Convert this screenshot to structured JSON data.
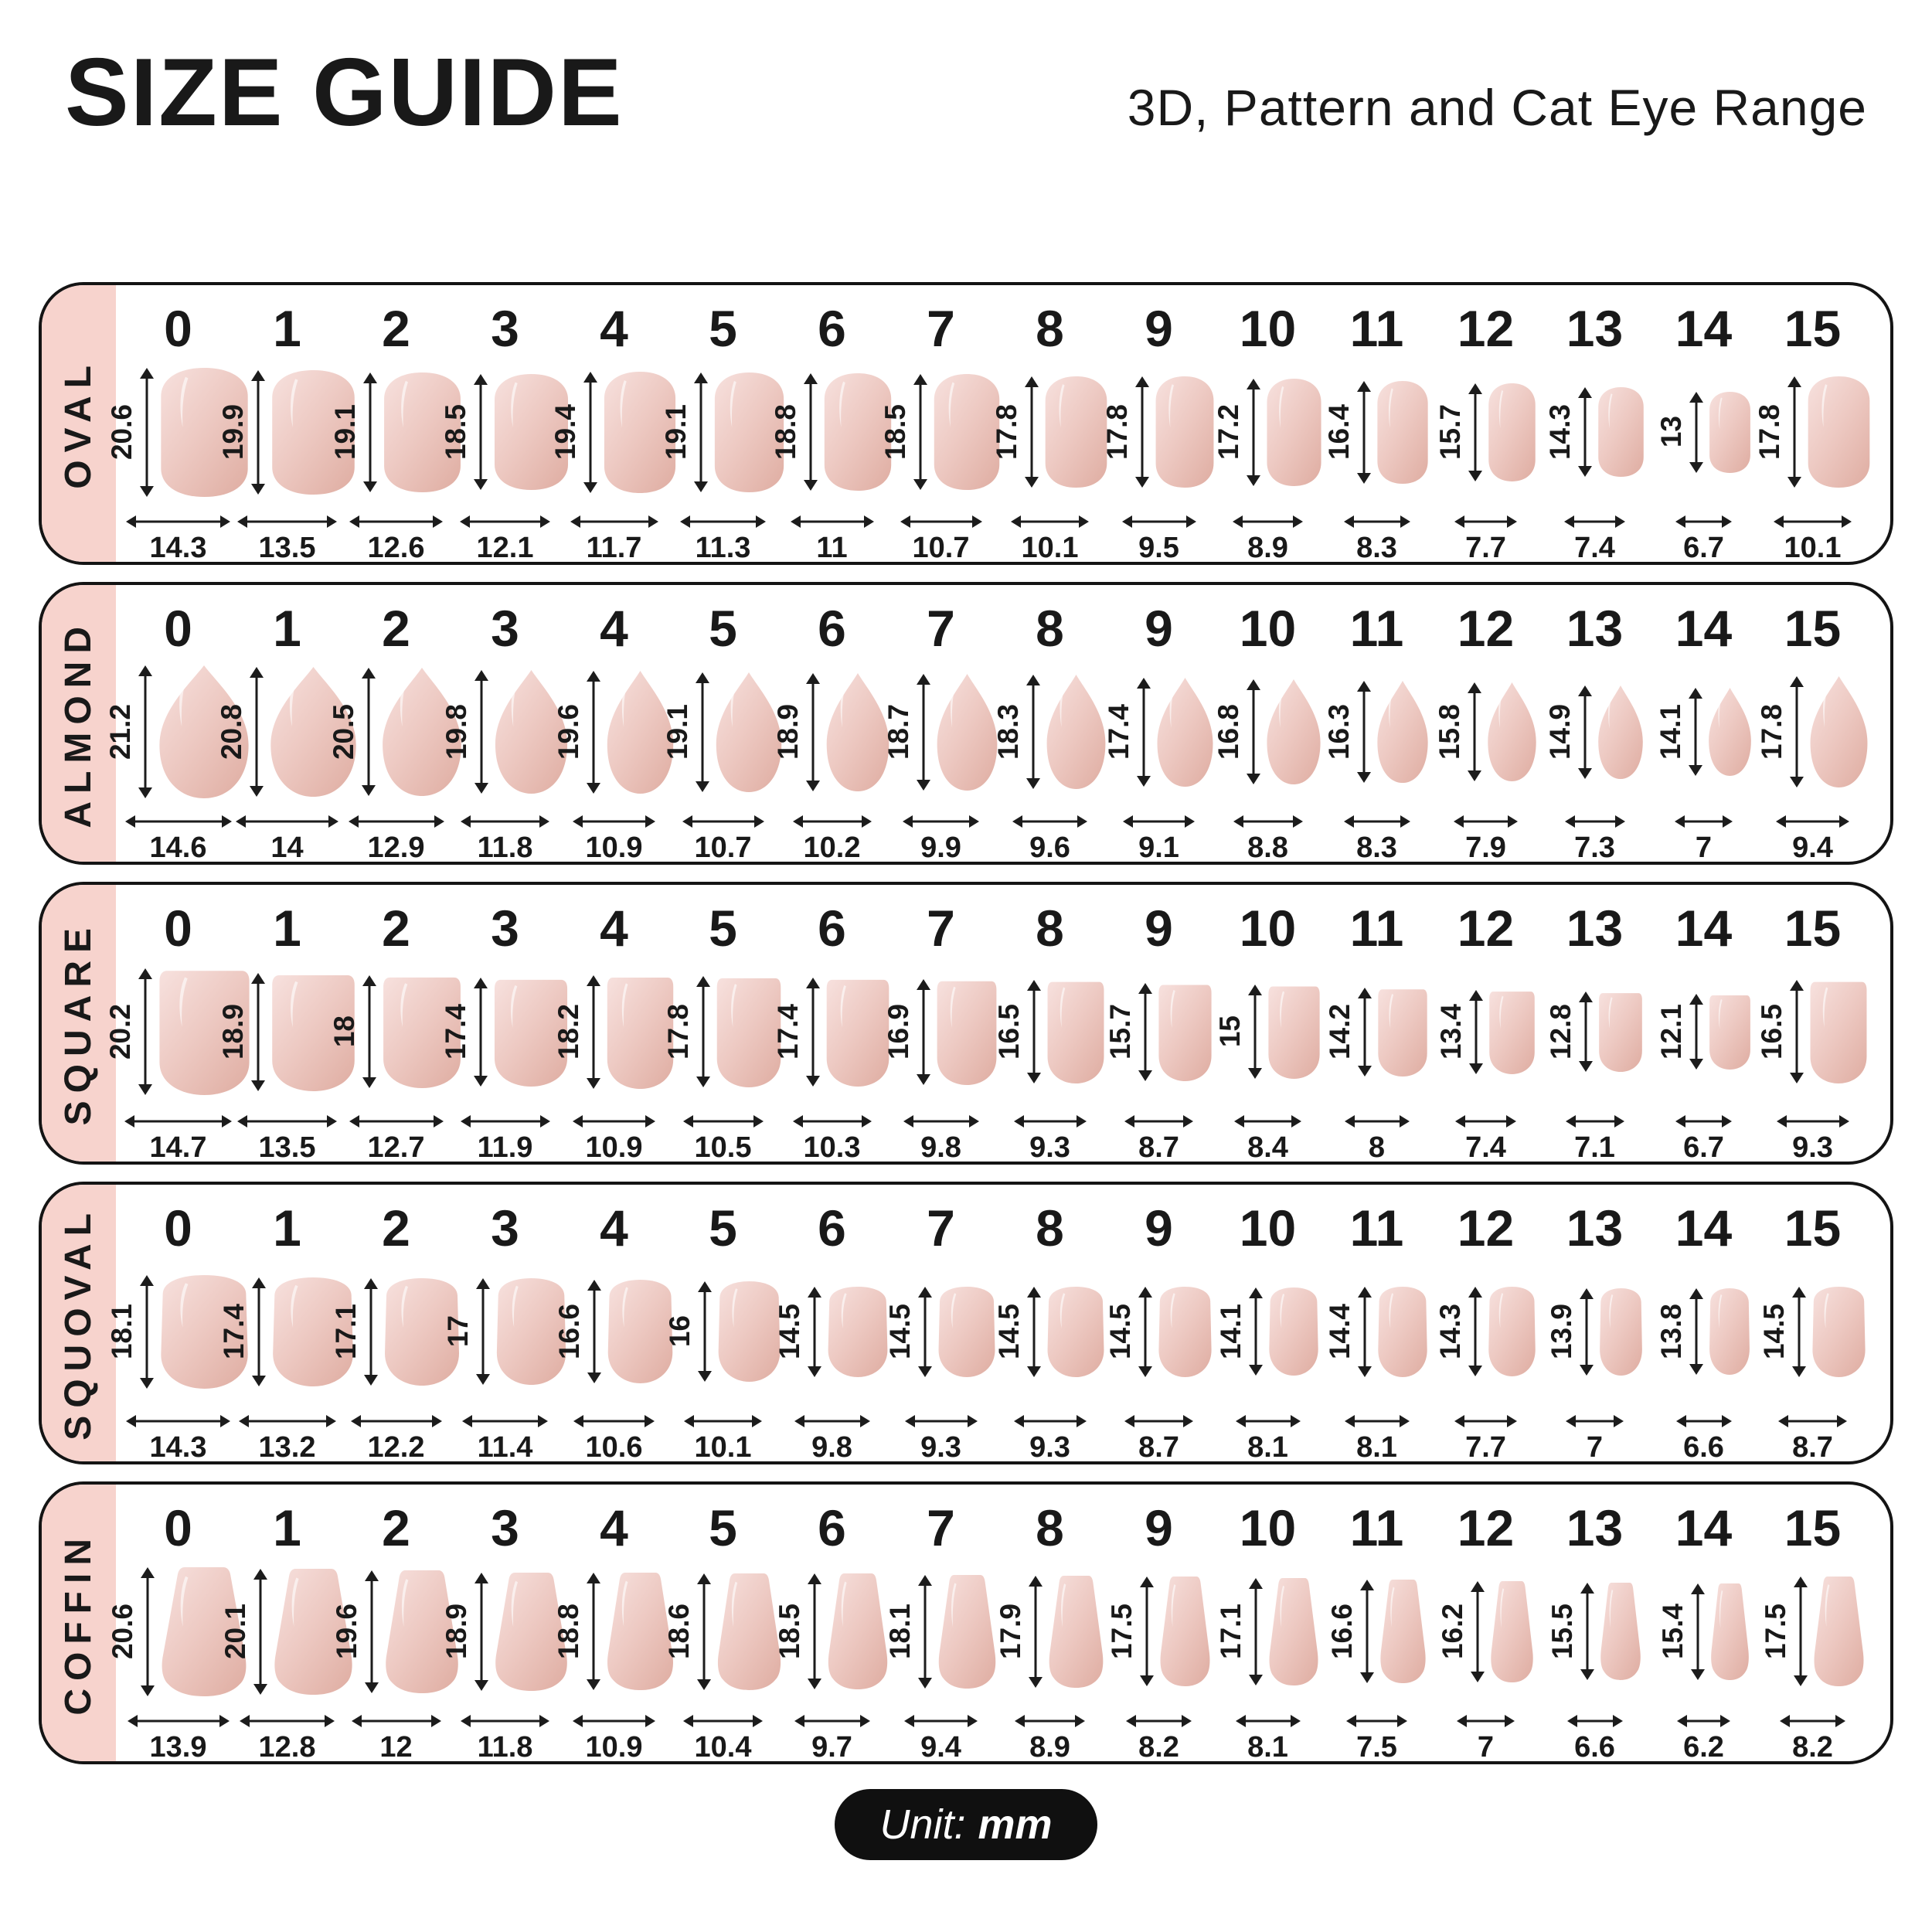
{
  "header": {
    "title": "SIZE GUIDE",
    "subtitle": "3D, Pattern and Cat Eye Range"
  },
  "unit_badge": {
    "prefix": "Unit:",
    "value": "mm"
  },
  "sizes": [
    "0",
    "1",
    "2",
    "3",
    "4",
    "5",
    "6",
    "7",
    "8",
    "9",
    "10",
    "11",
    "12",
    "13",
    "14",
    "15"
  ],
  "colors": {
    "ink": "#191919",
    "band_pink": "#f7d3cd",
    "badge_black": "#101010",
    "nail_light": "#f7e1de",
    "nail_mid": "#edc9c2",
    "nail_dark": "#e0afa4"
  },
  "rows": [
    {
      "label": "OVAL",
      "shape": "oval",
      "lengths": [
        "20.6",
        "19.9",
        "19.1",
        "18.5",
        "19.4",
        "19.1",
        "18.8",
        "18.5",
        "17.8",
        "17.8",
        "17.2",
        "16.4",
        "15.7",
        "14.3",
        "13",
        "17.8"
      ],
      "widths": [
        "14.3",
        "13.5",
        "12.6",
        "12.1",
        "11.7",
        "11.3",
        "11",
        "10.7",
        "10.1",
        "9.5",
        "8.9",
        "8.3",
        "7.7",
        "7.4",
        "6.7",
        "10.1"
      ]
    },
    {
      "label": "ALMOND",
      "shape": "almond",
      "lengths": [
        "21.2",
        "20.8",
        "20.5",
        "19.8",
        "19.6",
        "19.1",
        "18.9",
        "18.7",
        "18.3",
        "17.4",
        "16.8",
        "16.3",
        "15.8",
        "14.9",
        "14.1",
        "17.8"
      ],
      "widths": [
        "14.6",
        "14",
        "12.9",
        "11.8",
        "10.9",
        "10.7",
        "10.2",
        "9.9",
        "9.6",
        "9.1",
        "8.8",
        "8.3",
        "7.9",
        "7.3",
        "7",
        "9.4"
      ]
    },
    {
      "label": "SQUARE",
      "shape": "square",
      "lengths": [
        "20.2",
        "18.9",
        "18",
        "17.4",
        "18.2",
        "17.8",
        "17.4",
        "16.9",
        "16.5",
        "15.7",
        "15",
        "14.2",
        "13.4",
        "12.8",
        "12.1",
        "16.5"
      ],
      "widths": [
        "14.7",
        "13.5",
        "12.7",
        "11.9",
        "10.9",
        "10.5",
        "10.3",
        "9.8",
        "9.3",
        "8.7",
        "8.4",
        "8",
        "7.4",
        "7.1",
        "6.7",
        "9.3"
      ]
    },
    {
      "label": "SQUOVAL",
      "shape": "squoval",
      "lengths": [
        "18.1",
        "17.4",
        "17.1",
        "17",
        "16.6",
        "16",
        "14.5",
        "14.5",
        "14.5",
        "14.5",
        "14.1",
        "14.4",
        "14.3",
        "13.9",
        "13.8",
        "14.5"
      ],
      "widths": [
        "14.3",
        "13.2",
        "12.2",
        "11.4",
        "10.6",
        "10.1",
        "9.8",
        "9.3",
        "9.3",
        "8.7",
        "8.1",
        "8.1",
        "7.7",
        "7",
        "6.6",
        "8.7"
      ]
    },
    {
      "label": "COFFIN",
      "shape": "coffin",
      "lengths": [
        "20.6",
        "20.1",
        "19.6",
        "18.9",
        "18.8",
        "18.6",
        "18.5",
        "18.1",
        "17.9",
        "17.5",
        "17.1",
        "16.6",
        "16.2",
        "15.5",
        "15.4",
        "17.5"
      ],
      "widths": [
        "13.9",
        "12.8",
        "12",
        "11.8",
        "10.9",
        "10.4",
        "9.7",
        "9.4",
        "8.9",
        "8.2",
        "8.1",
        "7.5",
        "7",
        "6.6",
        "6.2",
        "8.2"
      ]
    }
  ]
}
